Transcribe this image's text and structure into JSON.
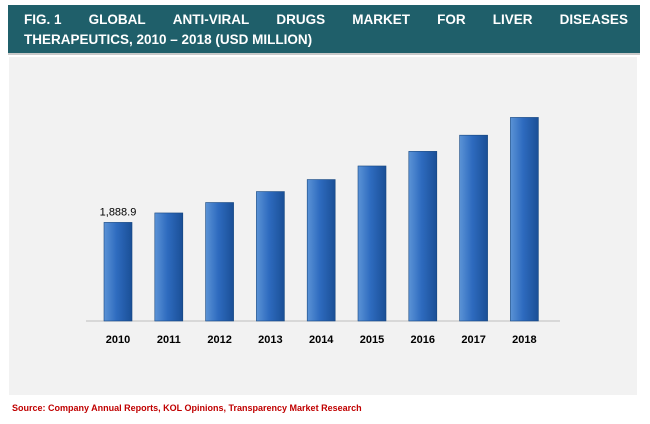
{
  "title": {
    "line1_words": [
      "FIG. 1",
      "GLOBAL",
      "ANTI-VIRAL",
      "DRUGS",
      "MARKET",
      "FOR",
      "LIVER",
      "DISEASES"
    ],
    "line2": "THERAPEUTICS, 2010 – 2018 (USD MILLION)",
    "background_color": "#1f5f6a"
  },
  "source": "Source: Company Annual Reports, KOL Opinions, Transparency Market Research",
  "colors": {
    "bar_light": "#5b93d6",
    "bar_mid": "#2e6bbf",
    "bar_dark": "#1a4f96",
    "source_text": "#c00000"
  },
  "chart_data": {
    "type": "bar",
    "title": "",
    "xlabel": "",
    "ylabel": "",
    "categories": [
      "2010",
      "2011",
      "2012",
      "2013",
      "2014",
      "2015",
      "2016",
      "2017",
      "2018"
    ],
    "values": [
      1888.9,
      2070,
      2270,
      2480,
      2710,
      2970,
      3250,
      3560,
      3900
    ],
    "data_labels": [
      "1,888.9",
      "",
      "",
      "",
      "",
      "",
      "",
      "",
      ""
    ],
    "ylim": [
      0,
      4100
    ],
    "grid": false,
    "legend": "none"
  }
}
